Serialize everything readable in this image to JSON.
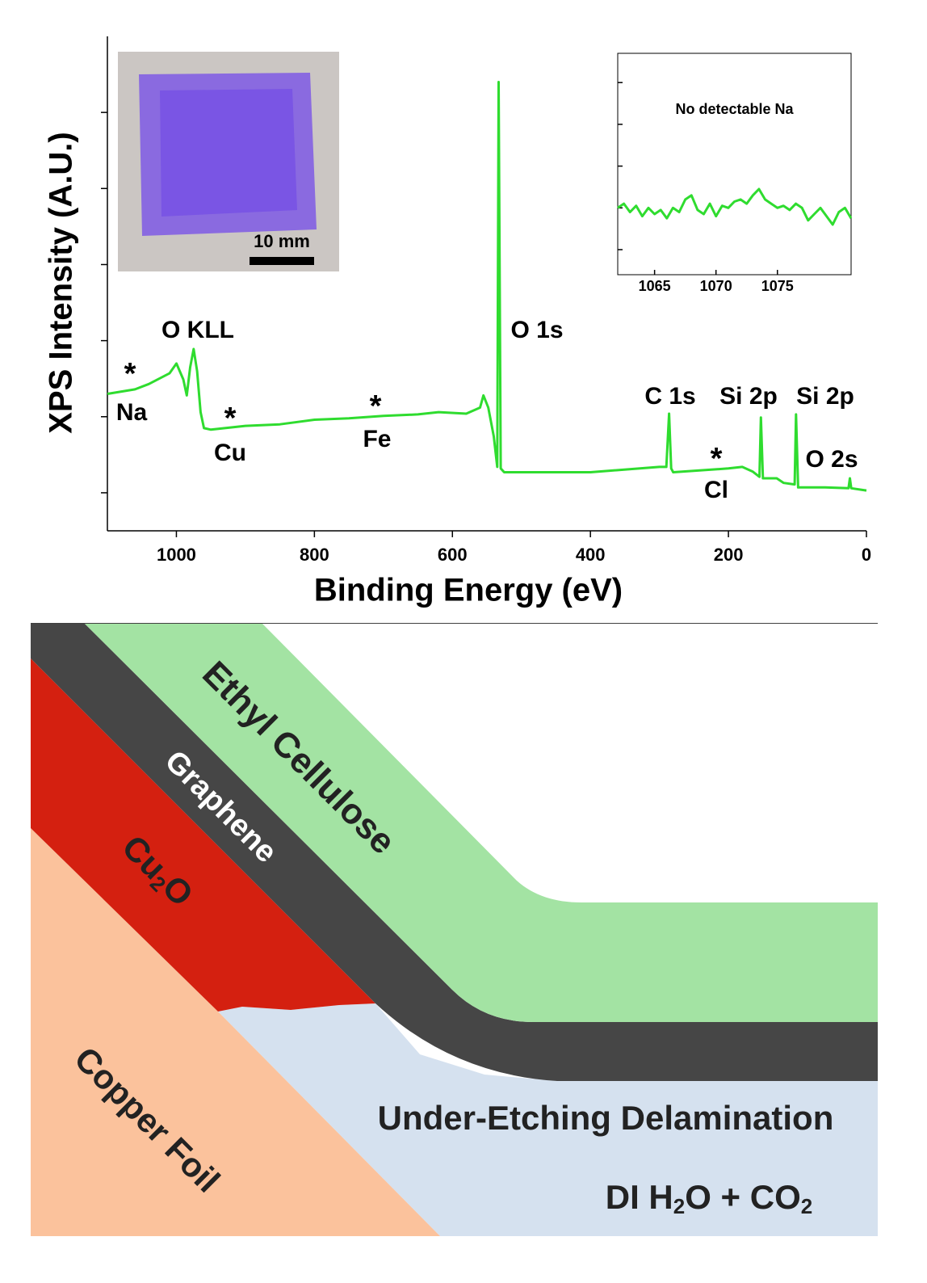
{
  "chart_data": [
    {
      "type": "line",
      "xlabel": "Binding Energy (eV)",
      "ylabel": "XPS Intensity (A.U.)",
      "xlim": [
        1100,
        0
      ],
      "xticks": [
        1000,
        800,
        600,
        400,
        200,
        0
      ],
      "ylim": [
        0,
        6.5
      ],
      "yticks": [
        0.5,
        1.5,
        2.5,
        3.5,
        4.5,
        5.5
      ],
      "series": [
        {
          "color": "#2fdc2f",
          "x": [
            1100,
            1060,
            1040,
            1010,
            1000,
            990,
            985,
            980,
            975,
            970,
            965,
            960,
            950,
            900,
            850,
            800,
            750,
            700,
            650,
            620,
            580,
            560,
            555,
            548,
            540,
            535,
            533,
            530,
            525,
            400,
            300,
            290,
            286,
            283,
            280,
            200,
            180,
            165,
            155,
            153,
            150,
            130,
            120,
            104,
            102,
            99,
            60,
            26,
            24,
            22,
            0
          ],
          "values": [
            1.8,
            1.86,
            1.93,
            2.07,
            2.2,
            1.99,
            1.78,
            2.15,
            2.39,
            2.1,
            1.56,
            1.35,
            1.33,
            1.38,
            1.4,
            1.46,
            1.48,
            1.51,
            1.53,
            1.56,
            1.54,
            1.62,
            1.78,
            1.62,
            1.24,
            0.84,
            5.9,
            0.82,
            0.77,
            0.77,
            0.84,
            0.84,
            1.54,
            0.82,
            0.77,
            0.82,
            0.84,
            0.78,
            0.71,
            1.49,
            0.69,
            0.69,
            0.63,
            0.61,
            1.53,
            0.57,
            0.57,
            0.56,
            0.69,
            0.56,
            0.53
          ]
        }
      ],
      "annotations": [
        "O KLL",
        "O 1s",
        "C 1s",
        "Si 2p",
        "Si 2p",
        "O 2s",
        "Na",
        "Cu",
        "Fe",
        "Cl",
        "*",
        "*",
        "*",
        "*"
      ],
      "photo_scale_label": "10 mm"
    },
    {
      "type": "line",
      "title": "No detectable Na",
      "xlim": [
        1062,
        1081
      ],
      "xticks": [
        1065,
        1070,
        1075
      ],
      "ylim": [
        -0.6,
        4.7
      ],
      "yticks": [
        0,
        1,
        2,
        3,
        4
      ],
      "series": [
        {
          "color": "#2fdc2f",
          "x": [
            1062,
            1062.5,
            1063,
            1063.5,
            1064,
            1064.5,
            1065,
            1065.5,
            1066,
            1066.5,
            1067,
            1067.5,
            1068,
            1068.5,
            1069,
            1069.5,
            1070,
            1070.5,
            1071,
            1071.5,
            1072,
            1072.5,
            1073,
            1073.5,
            1074,
            1074.5,
            1075,
            1075.5,
            1076,
            1076.5,
            1077,
            1077.5,
            1078,
            1078.5,
            1079,
            1079.5,
            1080,
            1080.5,
            1081
          ],
          "values": [
            1.0,
            1.1,
            0.9,
            1.05,
            0.8,
            1.0,
            0.85,
            0.95,
            0.75,
            1.0,
            0.9,
            1.2,
            1.3,
            0.95,
            0.85,
            1.1,
            0.8,
            1.05,
            1.0,
            1.15,
            1.2,
            1.1,
            1.3,
            1.45,
            1.2,
            1.1,
            1.0,
            1.05,
            0.95,
            1.1,
            1.0,
            0.7,
            0.85,
            1.0,
            0.8,
            0.6,
            0.9,
            1.0,
            0.75
          ]
        }
      ]
    }
  ],
  "diagram": {
    "ethyl_cellulose": "Ethyl Cellulose",
    "graphene": "Graphene",
    "cu2o": [
      "Cu",
      "2",
      "O"
    ],
    "copper_foil": "Copper Foil",
    "delamination": "Under-Etching Delamination",
    "solution": [
      "DI H",
      "2",
      "O + CO",
      "2"
    ]
  }
}
